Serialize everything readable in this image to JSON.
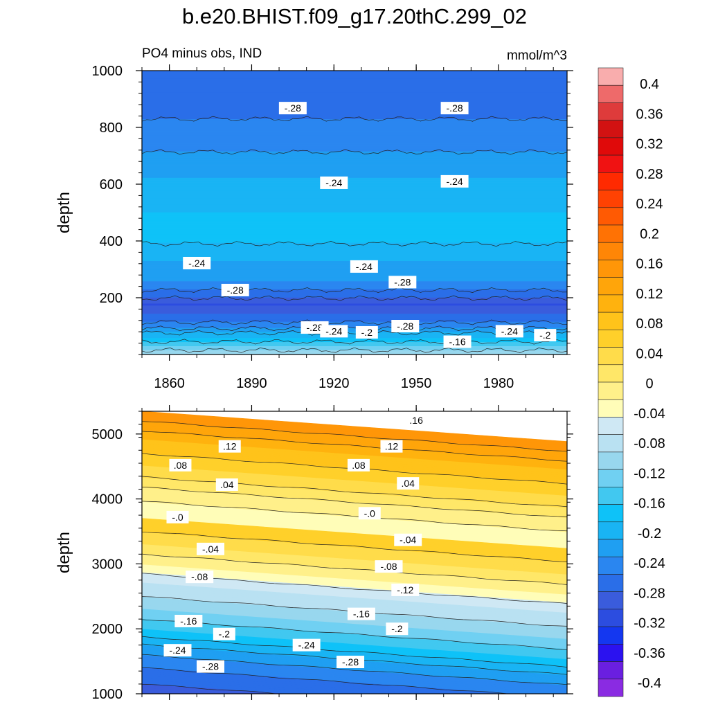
{
  "title": "b.e20.BHIST.f09_g17.20thC.299_02",
  "subtitle_left": "PO4 minus obs, IND",
  "subtitle_right": "mmol/m^3",
  "colors": {
    "palette": [
      "#8a2be2",
      "#6a1fe0",
      "#2b12f0",
      "#1437f0",
      "#2c4de0",
      "#3a5cdc",
      "#2a6ee8",
      "#2a86f0",
      "#1f9ff2",
      "#19b4f4",
      "#0ec2f8",
      "#41c8f0",
      "#70d0f2",
      "#98d7ee",
      "#b9e1f2",
      "#cfe8f4",
      "#fffdb8",
      "#fff08a",
      "#ffe768",
      "#ffdc4a",
      "#ffd02a",
      "#ffc31a",
      "#ffb20e",
      "#ffa50a",
      "#ff9608",
      "#ff8606",
      "#ff7204",
      "#ff5a03",
      "#ff4202",
      "#ff2a01",
      "#f01212",
      "#e00a0a",
      "#d21212",
      "#de3b3b",
      "#ee6a6a",
      "#f9adad"
    ],
    "line": "#222222"
  },
  "colorbar": {
    "labels": [
      "0.4",
      "0.36",
      "0.32",
      "0.28",
      "0.24",
      "0.2",
      "0.16",
      "0.12",
      "0.08",
      "0.04",
      "0",
      "-0.04",
      "-0.08",
      "-0.12",
      "-0.16",
      "-0.2",
      "-0.24",
      "-0.28",
      "-0.32",
      "-0.36",
      "-0.4"
    ]
  },
  "chart_data": [
    {
      "type": "heatmap",
      "panel": "top",
      "xlabel": "",
      "ylabel": "depth",
      "xlim": [
        1850,
        2005
      ],
      "ylim": [
        1000,
        0
      ],
      "x_ticks": [
        1860,
        1890,
        1920,
        1950,
        1980
      ],
      "x_tick_labels": [
        "1860",
        "1890",
        "1920",
        "1950",
        "1980"
      ],
      "y_ticks": [
        200,
        400,
        600,
        800,
        1000
      ],
      "y_tick_labels": [
        "200",
        "400",
        "600",
        "800",
        "1000"
      ],
      "profile": [
        {
          "depth": 0,
          "value": -0.14
        },
        {
          "depth": 30,
          "value": -0.18
        },
        {
          "depth": 60,
          "value": -0.22
        },
        {
          "depth": 100,
          "value": -0.27
        },
        {
          "depth": 140,
          "value": -0.3
        },
        {
          "depth": 175,
          "value": -0.32
        },
        {
          "depth": 210,
          "value": -0.29
        },
        {
          "depth": 260,
          "value": -0.26
        },
        {
          "depth": 330,
          "value": -0.24
        },
        {
          "depth": 420,
          "value": -0.21
        },
        {
          "depth": 500,
          "value": -0.22
        },
        {
          "depth": 620,
          "value": -0.24
        },
        {
          "depth": 760,
          "value": -0.27
        },
        {
          "depth": 900,
          "value": -0.29
        },
        {
          "depth": 1000,
          "value": -0.3
        }
      ],
      "contour_labels": [
        {
          "x": 1913,
          "y": 95,
          "text": "-.28"
        },
        {
          "x": 1920,
          "y": 82,
          "text": "-.24"
        },
        {
          "x": 1932,
          "y": 78,
          "text": "-.2"
        },
        {
          "x": 1946,
          "y": 100,
          "text": "-.28"
        },
        {
          "x": 1965,
          "y": 45,
          "text": "-.16"
        },
        {
          "x": 1984,
          "y": 82,
          "text": "-.24"
        },
        {
          "x": 1997,
          "y": 68,
          "text": "-.2"
        },
        {
          "x": 1884,
          "y": 227,
          "text": "-.28"
        },
        {
          "x": 1945,
          "y": 255,
          "text": "-.28"
        },
        {
          "x": 1870,
          "y": 322,
          "text": "-.24"
        },
        {
          "x": 1931,
          "y": 310,
          "text": "-.24"
        },
        {
          "x": 1920,
          "y": 605,
          "text": "-.24"
        },
        {
          "x": 1964,
          "y": 610,
          "text": "-.24"
        },
        {
          "x": 1905,
          "y": 868,
          "text": "-.28"
        },
        {
          "x": 1964,
          "y": 868,
          "text": "-.28"
        }
      ]
    },
    {
      "type": "heatmap",
      "panel": "bottom",
      "xlabel": "",
      "ylabel": "depth",
      "xlim": [
        1850,
        2005
      ],
      "ylim": [
        5350,
        1000
      ],
      "x_ticks": [
        1860,
        1890,
        1920,
        1950,
        1980
      ],
      "x_tick_labels": [],
      "y_ticks": [
        1000,
        2000,
        3000,
        4000,
        5000
      ],
      "y_tick_labels": [
        "1000",
        "2000",
        "3000",
        "4000",
        "5000"
      ],
      "profile": [
        {
          "depth": 1000,
          "value": -0.31
        },
        {
          "depth": 1300,
          "value": -0.29
        },
        {
          "depth": 1700,
          "value": -0.25
        },
        {
          "depth": 2000,
          "value": -0.2
        },
        {
          "depth": 2300,
          "value": -0.16
        },
        {
          "depth": 2700,
          "value": -0.12
        },
        {
          "depth": 3000,
          "value": -0.08
        },
        {
          "depth": 3300,
          "value": -0.04
        },
        {
          "depth": 3700,
          "value": 0.0
        },
        {
          "depth": 4100,
          "value": 0.03
        },
        {
          "depth": 4500,
          "value": 0.08
        },
        {
          "depth": 4900,
          "value": 0.12
        },
        {
          "depth": 5350,
          "value": 0.18
        }
      ],
      "depth_slope_per_year": 3,
      "contour_labels": [
        {
          "x": 1875,
          "y": 1420,
          "text": "-.28"
        },
        {
          "x": 1863,
          "y": 1670,
          "text": "-.24"
        },
        {
          "x": 1880,
          "y": 1920,
          "text": "-.2"
        },
        {
          "x": 1867,
          "y": 2120,
          "text": "-.16"
        },
        {
          "x": 1910,
          "y": 1750,
          "text": "-.24"
        },
        {
          "x": 1926,
          "y": 1490,
          "text": "-.28"
        },
        {
          "x": 1943,
          "y": 2000,
          "text": "-.2"
        },
        {
          "x": 1930,
          "y": 2230,
          "text": "-.16"
        },
        {
          "x": 1946,
          "y": 2600,
          "text": "-.12"
        },
        {
          "x": 1871,
          "y": 2800,
          "text": "-.08"
        },
        {
          "x": 1940,
          "y": 2960,
          "text": "-.08"
        },
        {
          "x": 1875,
          "y": 3230,
          "text": "-.04"
        },
        {
          "x": 1947,
          "y": 3370,
          "text": "-.04"
        },
        {
          "x": 1863,
          "y": 3720,
          "text": "-.0"
        },
        {
          "x": 1933,
          "y": 3780,
          "text": "-.0"
        },
        {
          "x": 1881,
          "y": 4220,
          "text": ".04"
        },
        {
          "x": 1947,
          "y": 4240,
          "text": ".04"
        },
        {
          "x": 1864,
          "y": 4520,
          "text": ".08"
        },
        {
          "x": 1929,
          "y": 4520,
          "text": ".08"
        },
        {
          "x": 1882,
          "y": 4810,
          "text": ".12"
        },
        {
          "x": 1941,
          "y": 4810,
          "text": ".12"
        },
        {
          "x": 1950,
          "y": 5210,
          "text": ".16"
        }
      ]
    }
  ]
}
